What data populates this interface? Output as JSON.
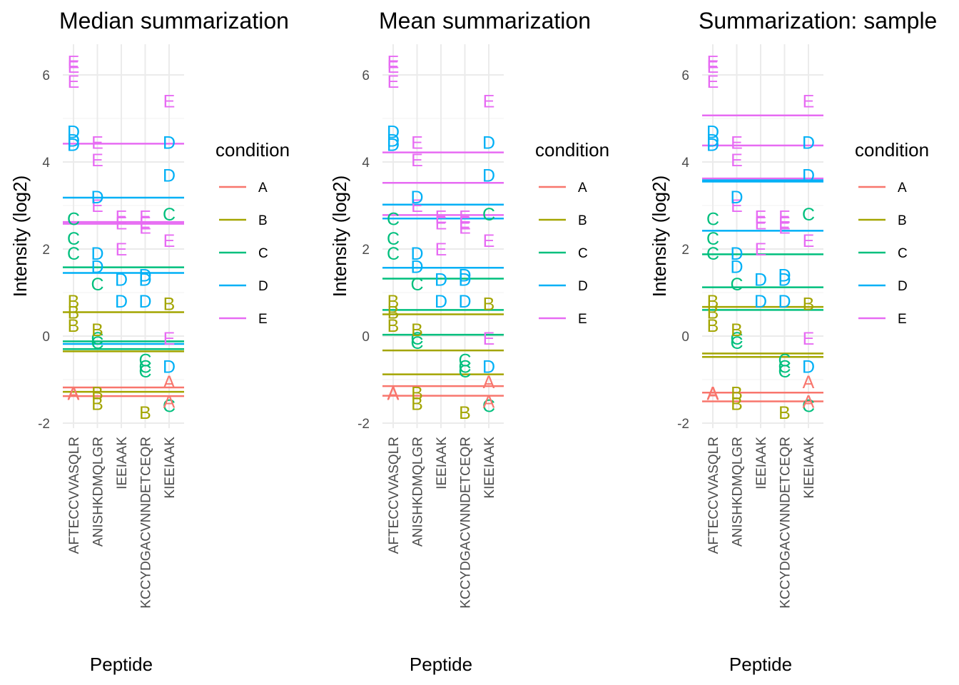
{
  "colors": {
    "A": "#F8766D",
    "B": "#A3A500",
    "C": "#00BF7D",
    "D": "#00B0F6",
    "E": "#E76BF3"
  },
  "legend": {
    "title": "condition",
    "keys": [
      "A",
      "B",
      "C",
      "D",
      "E"
    ]
  },
  "chart_data": [
    {
      "type": "scatter",
      "title": "Median summarization",
      "xlabel": "Peptide",
      "ylabel": "Intensity (log2)",
      "categories": [
        "AFTECCVVASQLR",
        "ANISHKDMQLGR",
        "IEEIAAK",
        "KCCYDGACVNNDETCEQR",
        "KIEEIAAK"
      ],
      "y_ticks": [
        -2,
        0,
        2,
        4,
        6
      ],
      "ylim": [
        -2.0,
        6.6
      ],
      "points": [
        {
          "x": "AFTECCVVASQLR",
          "y": 6.3,
          "label": "E"
        },
        {
          "x": "AFTECCVVASQLR",
          "y": 6.2,
          "label": "E"
        },
        {
          "x": "AFTECCVVASQLR",
          "y": 5.85,
          "label": "E"
        },
        {
          "x": "AFTECCVVASQLR",
          "y": 4.7,
          "label": "D"
        },
        {
          "x": "AFTECCVVASQLR",
          "y": 4.5,
          "label": "D"
        },
        {
          "x": "AFTECCVVASQLR",
          "y": 4.4,
          "label": "D"
        },
        {
          "x": "AFTECCVVASQLR",
          "y": 2.7,
          "label": "C"
        },
        {
          "x": "AFTECCVVASQLR",
          "y": 2.25,
          "label": "C"
        },
        {
          "x": "AFTECCVVASQLR",
          "y": 1.9,
          "label": "C"
        },
        {
          "x": "AFTECCVVASQLR",
          "y": 0.8,
          "label": "B"
        },
        {
          "x": "AFTECCVVASQLR",
          "y": 0.55,
          "label": "B"
        },
        {
          "x": "AFTECCVVASQLR",
          "y": 0.25,
          "label": "B"
        },
        {
          "x": "AFTECCVVASQLR",
          "y": -1.3,
          "label": "A"
        },
        {
          "x": "AFTECCVVASQLR",
          "y": -1.32,
          "label": "A"
        },
        {
          "x": "ANISHKDMQLGR",
          "y": 4.45,
          "label": "E"
        },
        {
          "x": "ANISHKDMQLGR",
          "y": 4.05,
          "label": "E"
        },
        {
          "x": "ANISHKDMQLGR",
          "y": 3.0,
          "label": "E"
        },
        {
          "x": "ANISHKDMQLGR",
          "y": 3.2,
          "label": "D"
        },
        {
          "x": "ANISHKDMQLGR",
          "y": 1.9,
          "label": "D"
        },
        {
          "x": "ANISHKDMQLGR",
          "y": 1.6,
          "label": "D"
        },
        {
          "x": "ANISHKDMQLGR",
          "y": 1.2,
          "label": "C"
        },
        {
          "x": "ANISHKDMQLGR",
          "y": -0.05,
          "label": "C"
        },
        {
          "x": "ANISHKDMQLGR",
          "y": -0.15,
          "label": "C"
        },
        {
          "x": "ANISHKDMQLGR",
          "y": 0.15,
          "label": "B"
        },
        {
          "x": "ANISHKDMQLGR",
          "y": -1.3,
          "label": "B"
        },
        {
          "x": "ANISHKDMQLGR",
          "y": -1.55,
          "label": "B"
        },
        {
          "x": "IEEIAAK",
          "y": 2.75,
          "label": "E"
        },
        {
          "x": "IEEIAAK",
          "y": 2.6,
          "label": "E"
        },
        {
          "x": "IEEIAAK",
          "y": 2.0,
          "label": "E"
        },
        {
          "x": "IEEIAAK",
          "y": 1.3,
          "label": "D"
        },
        {
          "x": "IEEIAAK",
          "y": 0.8,
          "label": "D"
        },
        {
          "x": "KCCYDGACVNNDETCEQR",
          "y": 2.75,
          "label": "E"
        },
        {
          "x": "KCCYDGACVNNDETCEQR",
          "y": 2.6,
          "label": "E"
        },
        {
          "x": "KCCYDGACVNNDETCEQR",
          "y": 2.5,
          "label": "E"
        },
        {
          "x": "KCCYDGACVNNDETCEQR",
          "y": 1.4,
          "label": "D"
        },
        {
          "x": "KCCYDGACVNNDETCEQR",
          "y": 1.3,
          "label": "D"
        },
        {
          "x": "KCCYDGACVNNDETCEQR",
          "y": 0.8,
          "label": "D"
        },
        {
          "x": "KCCYDGACVNNDETCEQR",
          "y": -0.55,
          "label": "C"
        },
        {
          "x": "KCCYDGACVNNDETCEQR",
          "y": -0.7,
          "label": "C"
        },
        {
          "x": "KCCYDGACVNNDETCEQR",
          "y": -0.8,
          "label": "C"
        },
        {
          "x": "KCCYDGACVNNDETCEQR",
          "y": -1.75,
          "label": "B"
        },
        {
          "x": "KIEEIAAK",
          "y": 5.4,
          "label": "E"
        },
        {
          "x": "KIEEIAAK",
          "y": 2.2,
          "label": "E"
        },
        {
          "x": "KIEEIAAK",
          "y": -0.05,
          "label": "E"
        },
        {
          "x": "KIEEIAAK",
          "y": 4.45,
          "label": "D"
        },
        {
          "x": "KIEEIAAK",
          "y": 3.7,
          "label": "D"
        },
        {
          "x": "KIEEIAAK",
          "y": -0.7,
          "label": "D"
        },
        {
          "x": "KIEEIAAK",
          "y": 2.8,
          "label": "C"
        },
        {
          "x": "KIEEIAAK",
          "y": -1.6,
          "label": "C"
        },
        {
          "x": "KIEEIAAK",
          "y": 0.75,
          "label": "B"
        },
        {
          "x": "KIEEIAAK",
          "y": -1.05,
          "label": "A"
        },
        {
          "x": "KIEEIAAK",
          "y": -1.5,
          "label": "A"
        }
      ],
      "hlines": [
        {
          "y": 4.42,
          "condition": "E"
        },
        {
          "y": 2.62,
          "condition": "E"
        },
        {
          "y": 2.58,
          "condition": "E"
        },
        {
          "y": 3.18,
          "condition": "D"
        },
        {
          "y": 1.45,
          "condition": "D"
        },
        {
          "y": -0.18,
          "condition": "D"
        },
        {
          "y": 1.58,
          "condition": "C"
        },
        {
          "y": -0.12,
          "condition": "C"
        },
        {
          "y": -0.3,
          "condition": "C"
        },
        {
          "y": 0.55,
          "condition": "B"
        },
        {
          "y": -0.35,
          "condition": "B"
        },
        {
          "y": -1.28,
          "condition": "B"
        },
        {
          "y": -1.18,
          "condition": "A"
        },
        {
          "y": -1.38,
          "condition": "A"
        }
      ]
    },
    {
      "type": "scatter",
      "title": "Mean summarization",
      "xlabel": "Peptide",
      "ylabel": "Intensity (log2)",
      "categories": [
        "AFTECCVVASQLR",
        "ANISHKDMQLGR",
        "IEEIAAK",
        "KCCYDGACVNNDETCEQR",
        "KIEEIAAK"
      ],
      "y_ticks": [
        -2,
        0,
        2,
        4,
        6
      ],
      "ylim": [
        -2.0,
        6.6
      ],
      "points": [
        {
          "x": "AFTECCVVASQLR",
          "y": 6.3,
          "label": "E"
        },
        {
          "x": "AFTECCVVASQLR",
          "y": 6.2,
          "label": "E"
        },
        {
          "x": "AFTECCVVASQLR",
          "y": 5.85,
          "label": "E"
        },
        {
          "x": "AFTECCVVASQLR",
          "y": 4.7,
          "label": "D"
        },
        {
          "x": "AFTECCVVASQLR",
          "y": 4.5,
          "label": "D"
        },
        {
          "x": "AFTECCVVASQLR",
          "y": 4.4,
          "label": "D"
        },
        {
          "x": "AFTECCVVASQLR",
          "y": 2.7,
          "label": "C"
        },
        {
          "x": "AFTECCVVASQLR",
          "y": 2.25,
          "label": "C"
        },
        {
          "x": "AFTECCVVASQLR",
          "y": 1.9,
          "label": "C"
        },
        {
          "x": "AFTECCVVASQLR",
          "y": 0.8,
          "label": "B"
        },
        {
          "x": "AFTECCVVASQLR",
          "y": 0.55,
          "label": "B"
        },
        {
          "x": "AFTECCVVASQLR",
          "y": 0.25,
          "label": "B"
        },
        {
          "x": "AFTECCVVASQLR",
          "y": -1.3,
          "label": "A"
        },
        {
          "x": "AFTECCVVASQLR",
          "y": -1.32,
          "label": "A"
        },
        {
          "x": "ANISHKDMQLGR",
          "y": 4.45,
          "label": "E"
        },
        {
          "x": "ANISHKDMQLGR",
          "y": 4.05,
          "label": "E"
        },
        {
          "x": "ANISHKDMQLGR",
          "y": 3.0,
          "label": "E"
        },
        {
          "x": "ANISHKDMQLGR",
          "y": 3.2,
          "label": "D"
        },
        {
          "x": "ANISHKDMQLGR",
          "y": 1.9,
          "label": "D"
        },
        {
          "x": "ANISHKDMQLGR",
          "y": 1.6,
          "label": "D"
        },
        {
          "x": "ANISHKDMQLGR",
          "y": 1.2,
          "label": "C"
        },
        {
          "x": "ANISHKDMQLGR",
          "y": -0.05,
          "label": "C"
        },
        {
          "x": "ANISHKDMQLGR",
          "y": -0.15,
          "label": "C"
        },
        {
          "x": "ANISHKDMQLGR",
          "y": 0.15,
          "label": "B"
        },
        {
          "x": "ANISHKDMQLGR",
          "y": -1.3,
          "label": "B"
        },
        {
          "x": "ANISHKDMQLGR",
          "y": -1.55,
          "label": "B"
        },
        {
          "x": "IEEIAAK",
          "y": 2.75,
          "label": "E"
        },
        {
          "x": "IEEIAAK",
          "y": 2.6,
          "label": "E"
        },
        {
          "x": "IEEIAAK",
          "y": 2.0,
          "label": "E"
        },
        {
          "x": "IEEIAAK",
          "y": 1.3,
          "label": "D"
        },
        {
          "x": "IEEIAAK",
          "y": 0.8,
          "label": "D"
        },
        {
          "x": "KCCYDGACVNNDETCEQR",
          "y": 2.75,
          "label": "E"
        },
        {
          "x": "KCCYDGACVNNDETCEQR",
          "y": 2.6,
          "label": "E"
        },
        {
          "x": "KCCYDGACVNNDETCEQR",
          "y": 2.5,
          "label": "E"
        },
        {
          "x": "KCCYDGACVNNDETCEQR",
          "y": 1.4,
          "label": "D"
        },
        {
          "x": "KCCYDGACVNNDETCEQR",
          "y": 1.3,
          "label": "D"
        },
        {
          "x": "KCCYDGACVNNDETCEQR",
          "y": 0.8,
          "label": "D"
        },
        {
          "x": "KCCYDGACVNNDETCEQR",
          "y": -0.55,
          "label": "C"
        },
        {
          "x": "KCCYDGACVNNDETCEQR",
          "y": -0.7,
          "label": "C"
        },
        {
          "x": "KCCYDGACVNNDETCEQR",
          "y": -0.8,
          "label": "C"
        },
        {
          "x": "KCCYDGACVNNDETCEQR",
          "y": -1.75,
          "label": "B"
        },
        {
          "x": "KIEEIAAK",
          "y": 5.4,
          "label": "E"
        },
        {
          "x": "KIEEIAAK",
          "y": 2.2,
          "label": "E"
        },
        {
          "x": "KIEEIAAK",
          "y": -0.05,
          "label": "E"
        },
        {
          "x": "KIEEIAAK",
          "y": 4.45,
          "label": "D"
        },
        {
          "x": "KIEEIAAK",
          "y": 3.7,
          "label": "D"
        },
        {
          "x": "KIEEIAAK",
          "y": -0.7,
          "label": "D"
        },
        {
          "x": "KIEEIAAK",
          "y": 2.8,
          "label": "C"
        },
        {
          "x": "KIEEIAAK",
          "y": -1.6,
          "label": "C"
        },
        {
          "x": "KIEEIAAK",
          "y": 0.75,
          "label": "B"
        },
        {
          "x": "KIEEIAAK",
          "y": -1.05,
          "label": "A"
        },
        {
          "x": "KIEEIAAK",
          "y": -1.5,
          "label": "A"
        }
      ],
      "hlines": [
        {
          "y": 4.22,
          "condition": "E"
        },
        {
          "y": 3.52,
          "condition": "E"
        },
        {
          "y": 2.78,
          "condition": "E"
        },
        {
          "y": 3.02,
          "condition": "D"
        },
        {
          "y": 2.7,
          "condition": "D"
        },
        {
          "y": 1.57,
          "condition": "D"
        },
        {
          "y": 1.32,
          "condition": "C"
        },
        {
          "y": 0.6,
          "condition": "C"
        },
        {
          "y": 0.03,
          "condition": "C"
        },
        {
          "y": 0.5,
          "condition": "B"
        },
        {
          "y": -0.33,
          "condition": "B"
        },
        {
          "y": -0.88,
          "condition": "B"
        },
        {
          "y": -1.15,
          "condition": "A"
        },
        {
          "y": -1.37,
          "condition": "A"
        }
      ]
    },
    {
      "type": "scatter",
      "title": "Summarization: sample",
      "xlabel": "Peptide",
      "ylabel": "Intensity (log2)",
      "categories": [
        "AFTECCVVASQLR",
        "ANISHKDMQLGR",
        "IEEIAAK",
        "KCCYDGACVNNDETCEQR",
        "KIEEIAAK"
      ],
      "y_ticks": [
        -2,
        0,
        2,
        4,
        6
      ],
      "ylim": [
        -2.0,
        6.6
      ],
      "points": [
        {
          "x": "AFTECCVVASQLR",
          "y": 6.3,
          "label": "E"
        },
        {
          "x": "AFTECCVVASQLR",
          "y": 6.2,
          "label": "E"
        },
        {
          "x": "AFTECCVVASQLR",
          "y": 5.85,
          "label": "E"
        },
        {
          "x": "AFTECCVVASQLR",
          "y": 4.7,
          "label": "D"
        },
        {
          "x": "AFTECCVVASQLR",
          "y": 4.5,
          "label": "D"
        },
        {
          "x": "AFTECCVVASQLR",
          "y": 4.4,
          "label": "D"
        },
        {
          "x": "AFTECCVVASQLR",
          "y": 2.7,
          "label": "C"
        },
        {
          "x": "AFTECCVVASQLR",
          "y": 2.25,
          "label": "C"
        },
        {
          "x": "AFTECCVVASQLR",
          "y": 1.9,
          "label": "C"
        },
        {
          "x": "AFTECCVVASQLR",
          "y": 0.8,
          "label": "B"
        },
        {
          "x": "AFTECCVVASQLR",
          "y": 0.55,
          "label": "B"
        },
        {
          "x": "AFTECCVVASQLR",
          "y": 0.25,
          "label": "B"
        },
        {
          "x": "AFTECCVVASQLR",
          "y": -1.3,
          "label": "A"
        },
        {
          "x": "AFTECCVVASQLR",
          "y": -1.32,
          "label": "A"
        },
        {
          "x": "ANISHKDMQLGR",
          "y": 4.45,
          "label": "E"
        },
        {
          "x": "ANISHKDMQLGR",
          "y": 4.05,
          "label": "E"
        },
        {
          "x": "ANISHKDMQLGR",
          "y": 3.0,
          "label": "E"
        },
        {
          "x": "ANISHKDMQLGR",
          "y": 3.2,
          "label": "D"
        },
        {
          "x": "ANISHKDMQLGR",
          "y": 1.9,
          "label": "D"
        },
        {
          "x": "ANISHKDMQLGR",
          "y": 1.6,
          "label": "D"
        },
        {
          "x": "ANISHKDMQLGR",
          "y": 1.2,
          "label": "C"
        },
        {
          "x": "ANISHKDMQLGR",
          "y": -0.05,
          "label": "C"
        },
        {
          "x": "ANISHKDMQLGR",
          "y": -0.15,
          "label": "C"
        },
        {
          "x": "ANISHKDMQLGR",
          "y": 0.15,
          "label": "B"
        },
        {
          "x": "ANISHKDMQLGR",
          "y": -1.3,
          "label": "B"
        },
        {
          "x": "ANISHKDMQLGR",
          "y": -1.55,
          "label": "B"
        },
        {
          "x": "IEEIAAK",
          "y": 2.75,
          "label": "E"
        },
        {
          "x": "IEEIAAK",
          "y": 2.6,
          "label": "E"
        },
        {
          "x": "IEEIAAK",
          "y": 2.0,
          "label": "E"
        },
        {
          "x": "IEEIAAK",
          "y": 1.3,
          "label": "D"
        },
        {
          "x": "IEEIAAK",
          "y": 0.8,
          "label": "D"
        },
        {
          "x": "KCCYDGACVNNDETCEQR",
          "y": 2.75,
          "label": "E"
        },
        {
          "x": "KCCYDGACVNNDETCEQR",
          "y": 2.6,
          "label": "E"
        },
        {
          "x": "KCCYDGACVNNDETCEQR",
          "y": 2.5,
          "label": "E"
        },
        {
          "x": "KCCYDGACVNNDETCEQR",
          "y": 1.4,
          "label": "D"
        },
        {
          "x": "KCCYDGACVNNDETCEQR",
          "y": 1.3,
          "label": "D"
        },
        {
          "x": "KCCYDGACVNNDETCEQR",
          "y": 0.8,
          "label": "D"
        },
        {
          "x": "KCCYDGACVNNDETCEQR",
          "y": -0.55,
          "label": "C"
        },
        {
          "x": "KCCYDGACVNNDETCEQR",
          "y": -0.7,
          "label": "C"
        },
        {
          "x": "KCCYDGACVNNDETCEQR",
          "y": -0.8,
          "label": "C"
        },
        {
          "x": "KCCYDGACVNNDETCEQR",
          "y": -1.75,
          "label": "B"
        },
        {
          "x": "KIEEIAAK",
          "y": 5.4,
          "label": "E"
        },
        {
          "x": "KIEEIAAK",
          "y": 2.2,
          "label": "E"
        },
        {
          "x": "KIEEIAAK",
          "y": -0.05,
          "label": "E"
        },
        {
          "x": "KIEEIAAK",
          "y": 4.45,
          "label": "D"
        },
        {
          "x": "KIEEIAAK",
          "y": 3.7,
          "label": "D"
        },
        {
          "x": "KIEEIAAK",
          "y": -0.7,
          "label": "D"
        },
        {
          "x": "KIEEIAAK",
          "y": 2.8,
          "label": "C"
        },
        {
          "x": "KIEEIAAK",
          "y": -1.6,
          "label": "C"
        },
        {
          "x": "KIEEIAAK",
          "y": 0.75,
          "label": "B"
        },
        {
          "x": "KIEEIAAK",
          "y": -1.05,
          "label": "A"
        },
        {
          "x": "KIEEIAAK",
          "y": -1.5,
          "label": "A"
        }
      ],
      "hlines": [
        {
          "y": 5.07,
          "condition": "E"
        },
        {
          "y": 4.38,
          "condition": "E"
        },
        {
          "y": 3.62,
          "condition": "E"
        },
        {
          "y": 3.58,
          "condition": "D"
        },
        {
          "y": 3.55,
          "condition": "D"
        },
        {
          "y": 2.42,
          "condition": "D"
        },
        {
          "y": 1.88,
          "condition": "C"
        },
        {
          "y": 1.12,
          "condition": "C"
        },
        {
          "y": 0.6,
          "condition": "C"
        },
        {
          "y": 0.67,
          "condition": "B"
        },
        {
          "y": -0.4,
          "condition": "B"
        },
        {
          "y": -0.48,
          "condition": "B"
        },
        {
          "y": -1.3,
          "condition": "A"
        },
        {
          "y": -1.5,
          "condition": "A"
        }
      ]
    }
  ]
}
